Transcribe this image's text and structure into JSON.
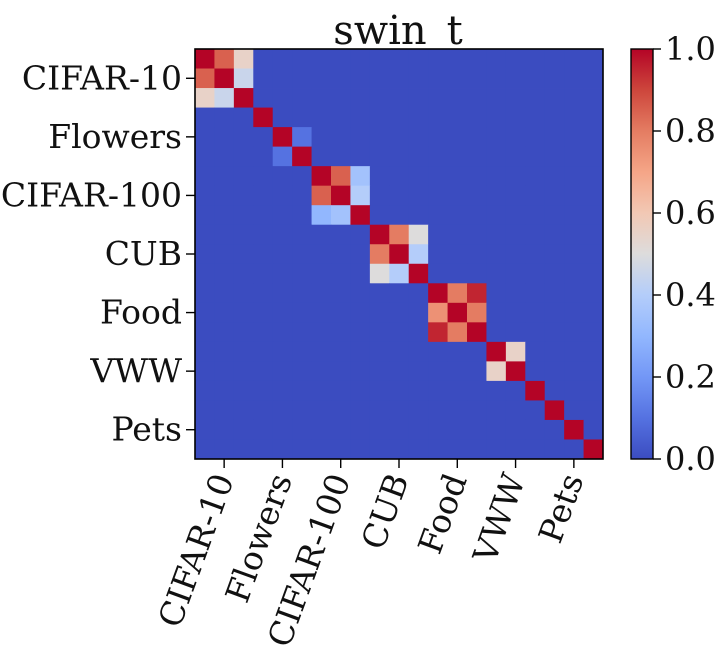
{
  "chart_data": {
    "type": "heatmap",
    "title": "swin_t",
    "xlabel": "",
    "ylabel": "",
    "y_tick_labels": [
      "CIFAR-10",
      "Flowers",
      "CIFAR-100",
      "CUB",
      "Food",
      "VWW",
      "Pets"
    ],
    "x_tick_labels": [
      "CIFAR-10",
      "Flowers",
      "CIFAR-100",
      "CUB",
      "Food",
      "VWW",
      "Pets"
    ],
    "tick_cell_index": [
      1,
      4,
      7,
      10,
      13,
      16,
      19
    ],
    "cell_count": 21,
    "matrix": [
      [
        1.0,
        0.85,
        0.55,
        0,
        0,
        0,
        0,
        0,
        0,
        0,
        0,
        0,
        0,
        0,
        0,
        0,
        0,
        0,
        0,
        0,
        0
      ],
      [
        0.85,
        1.0,
        0.45,
        0,
        0,
        0,
        0,
        0,
        0,
        0,
        0,
        0,
        0,
        0,
        0,
        0,
        0,
        0,
        0,
        0,
        0
      ],
      [
        0.55,
        0.45,
        1.0,
        0,
        0,
        0,
        0,
        0,
        0,
        0,
        0,
        0,
        0,
        0,
        0,
        0,
        0,
        0,
        0,
        0,
        0
      ],
      [
        0,
        0,
        0,
        1.0,
        0,
        0,
        0,
        0,
        0,
        0,
        0,
        0,
        0,
        0,
        0,
        0,
        0,
        0,
        0,
        0,
        0
      ],
      [
        0,
        0,
        0,
        0,
        1.0,
        0.1,
        0,
        0,
        0,
        0,
        0,
        0,
        0,
        0,
        0,
        0,
        0,
        0,
        0,
        0,
        0
      ],
      [
        0,
        0,
        0,
        0,
        0.1,
        1.0,
        0,
        0,
        0,
        0,
        0,
        0,
        0,
        0,
        0,
        0,
        0,
        0,
        0,
        0,
        0
      ],
      [
        0,
        0,
        0,
        0,
        0,
        0,
        1.0,
        0.85,
        0.35,
        0,
        0,
        0,
        0,
        0,
        0,
        0,
        0,
        0,
        0,
        0,
        0
      ],
      [
        0,
        0,
        0,
        0,
        0,
        0,
        0.85,
        1.0,
        0.4,
        0,
        0,
        0,
        0,
        0,
        0,
        0,
        0,
        0,
        0,
        0,
        0
      ],
      [
        0,
        0,
        0,
        0,
        0,
        0,
        0.3,
        0.35,
        1.0,
        0,
        0,
        0,
        0,
        0,
        0,
        0,
        0,
        0,
        0,
        0,
        0
      ],
      [
        0,
        0,
        0,
        0,
        0,
        0,
        0,
        0,
        0,
        1.0,
        0.8,
        0.5,
        0,
        0,
        0,
        0,
        0,
        0,
        0,
        0,
        0
      ],
      [
        0,
        0,
        0,
        0,
        0,
        0,
        0,
        0,
        0,
        0.8,
        1.0,
        0.4,
        0,
        0,
        0,
        0,
        0,
        0,
        0,
        0,
        0
      ],
      [
        0,
        0,
        0,
        0,
        0,
        0,
        0,
        0,
        0,
        0.5,
        0.4,
        1.0,
        0,
        0,
        0,
        0,
        0,
        0,
        0,
        0,
        0
      ],
      [
        0,
        0,
        0,
        0,
        0,
        0,
        0,
        0,
        0,
        0,
        0,
        0,
        1.0,
        0.8,
        0.95,
        0,
        0,
        0,
        0,
        0,
        0
      ],
      [
        0,
        0,
        0,
        0,
        0,
        0,
        0,
        0,
        0,
        0,
        0,
        0,
        0.75,
        1.0,
        0.8,
        0,
        0,
        0,
        0,
        0,
        0
      ],
      [
        0,
        0,
        0,
        0,
        0,
        0,
        0,
        0,
        0,
        0,
        0,
        0,
        0.95,
        0.8,
        1.0,
        0,
        0,
        0,
        0,
        0,
        0
      ],
      [
        0,
        0,
        0,
        0,
        0,
        0,
        0,
        0,
        0,
        0,
        0,
        0,
        0,
        0,
        0,
        1.0,
        0.55,
        0,
        0,
        0,
        0
      ],
      [
        0,
        0,
        0,
        0,
        0,
        0,
        0,
        0,
        0,
        0,
        0,
        0,
        0,
        0,
        0,
        0.55,
        1.0,
        0,
        0,
        0,
        0
      ],
      [
        0,
        0,
        0,
        0,
        0,
        0,
        0,
        0,
        0,
        0,
        0,
        0,
        0,
        0,
        0,
        0,
        0,
        1.0,
        0,
        0,
        0
      ],
      [
        0,
        0,
        0,
        0,
        0,
        0,
        0,
        0,
        0,
        0,
        0,
        0,
        0,
        0,
        0,
        0,
        0,
        0,
        1.0,
        0,
        0
      ],
      [
        0,
        0,
        0,
        0,
        0,
        0,
        0,
        0,
        0,
        0,
        0,
        0,
        0,
        0,
        0,
        0,
        0,
        0,
        0,
        1.0,
        0
      ],
      [
        0,
        0,
        0,
        0,
        0,
        0,
        0,
        0,
        0,
        0,
        0,
        0,
        0,
        0,
        0,
        0,
        0,
        0,
        0,
        0,
        1.0
      ]
    ],
    "value_range": [
      0.0,
      1.0
    ],
    "colormap": "coolwarm",
    "colorbar": {
      "ticks": [
        0.0,
        0.2,
        0.4,
        0.6,
        0.8,
        1.0
      ],
      "tick_labels": [
        "0.0",
        "0.2",
        "0.4",
        "0.6",
        "0.8",
        "1.0"
      ]
    },
    "grid": false
  }
}
